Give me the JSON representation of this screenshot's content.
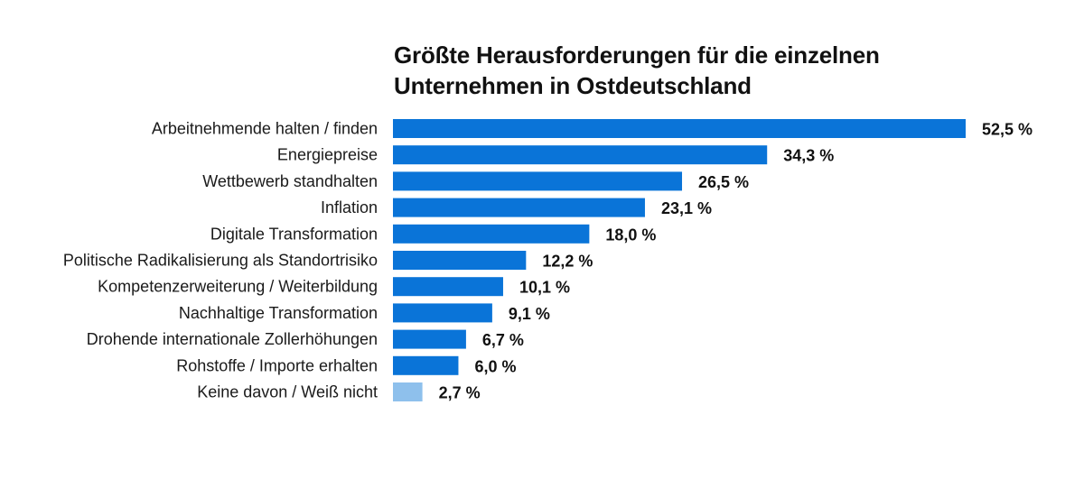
{
  "chart_data": {
    "type": "bar",
    "orientation": "horizontal",
    "title": "Größte Herausforderungen für die einzelnen Unternehmen in Ostdeutschland",
    "title_lines": [
      "Größte Herausforderungen für die einzelnen",
      "Unternehmen in Ostdeutschland"
    ],
    "categories": [
      "Arbeitnehmende halten / finden",
      "Energiepreise",
      "Wettbewerb standhalten",
      "Inflation",
      "Digitale Transformation",
      "Politische Radikalisierung als Standortrisiko",
      "Kompetenzerweiterung / Weiterbildung",
      "Nachhaltige Transformation",
      "Drohende internationale Zollerhöhungen",
      "Rohstoffe / Importe erhalten",
      "Keine davon / Weiß nicht"
    ],
    "values": [
      52.5,
      34.3,
      26.5,
      23.1,
      18.0,
      12.2,
      10.1,
      9.1,
      6.7,
      6.0,
      2.7
    ],
    "value_labels": [
      "52,5 %",
      "34,3 %",
      "26,5 %",
      "23,1 %",
      "18,0 %",
      "12,2 %",
      "10,1 %",
      "9,1 %",
      "6,7 %",
      "6,0 %",
      "2,7 %"
    ],
    "xlim": [
      0,
      52.5
    ],
    "grid": false,
    "colors": {
      "primary": "#0a74d8",
      "secondary": "#8ec0ec"
    },
    "bar_colors": [
      "primary",
      "primary",
      "primary",
      "primary",
      "primary",
      "primary",
      "primary",
      "primary",
      "primary",
      "primary",
      "secondary"
    ]
  }
}
